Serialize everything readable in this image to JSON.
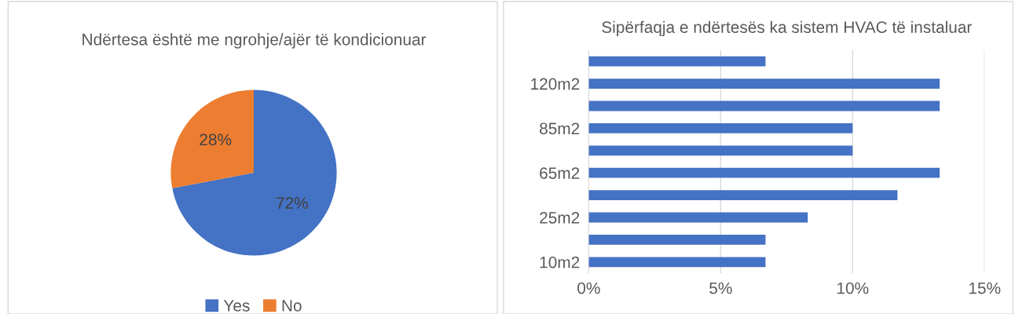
{
  "chart_data": [
    {
      "type": "pie",
      "title": "Ndërtesa është me ngrohje/ajër të kondicionuar",
      "categories": [
        "Yes",
        "No"
      ],
      "values": [
        72,
        28
      ],
      "colors": [
        "#4472c4",
        "#ed7d31"
      ],
      "value_labels": [
        "72%",
        "28%"
      ],
      "legend": "bottom"
    },
    {
      "type": "bar",
      "orientation": "horizontal",
      "title": "Sipërfaqja e ndërtesës ka sistem HVAC të instaluar",
      "categories": [
        null,
        "120m2",
        null,
        "85m2",
        null,
        "65m2",
        null,
        "25m2",
        null,
        "10m2"
      ],
      "values": [
        6.7,
        13.3,
        13.3,
        10,
        10,
        13.3,
        11.7,
        8.3,
        6.7,
        6.7
      ],
      "color": "#4472c4",
      "xlim": [
        0,
        15
      ],
      "xticks": [
        {
          "value": 0,
          "label": "0%"
        },
        {
          "value": 5,
          "label": "5%"
        },
        {
          "value": 10,
          "label": "10%"
        },
        {
          "value": 15,
          "label": "15%"
        }
      ],
      "grid": "x"
    }
  ]
}
